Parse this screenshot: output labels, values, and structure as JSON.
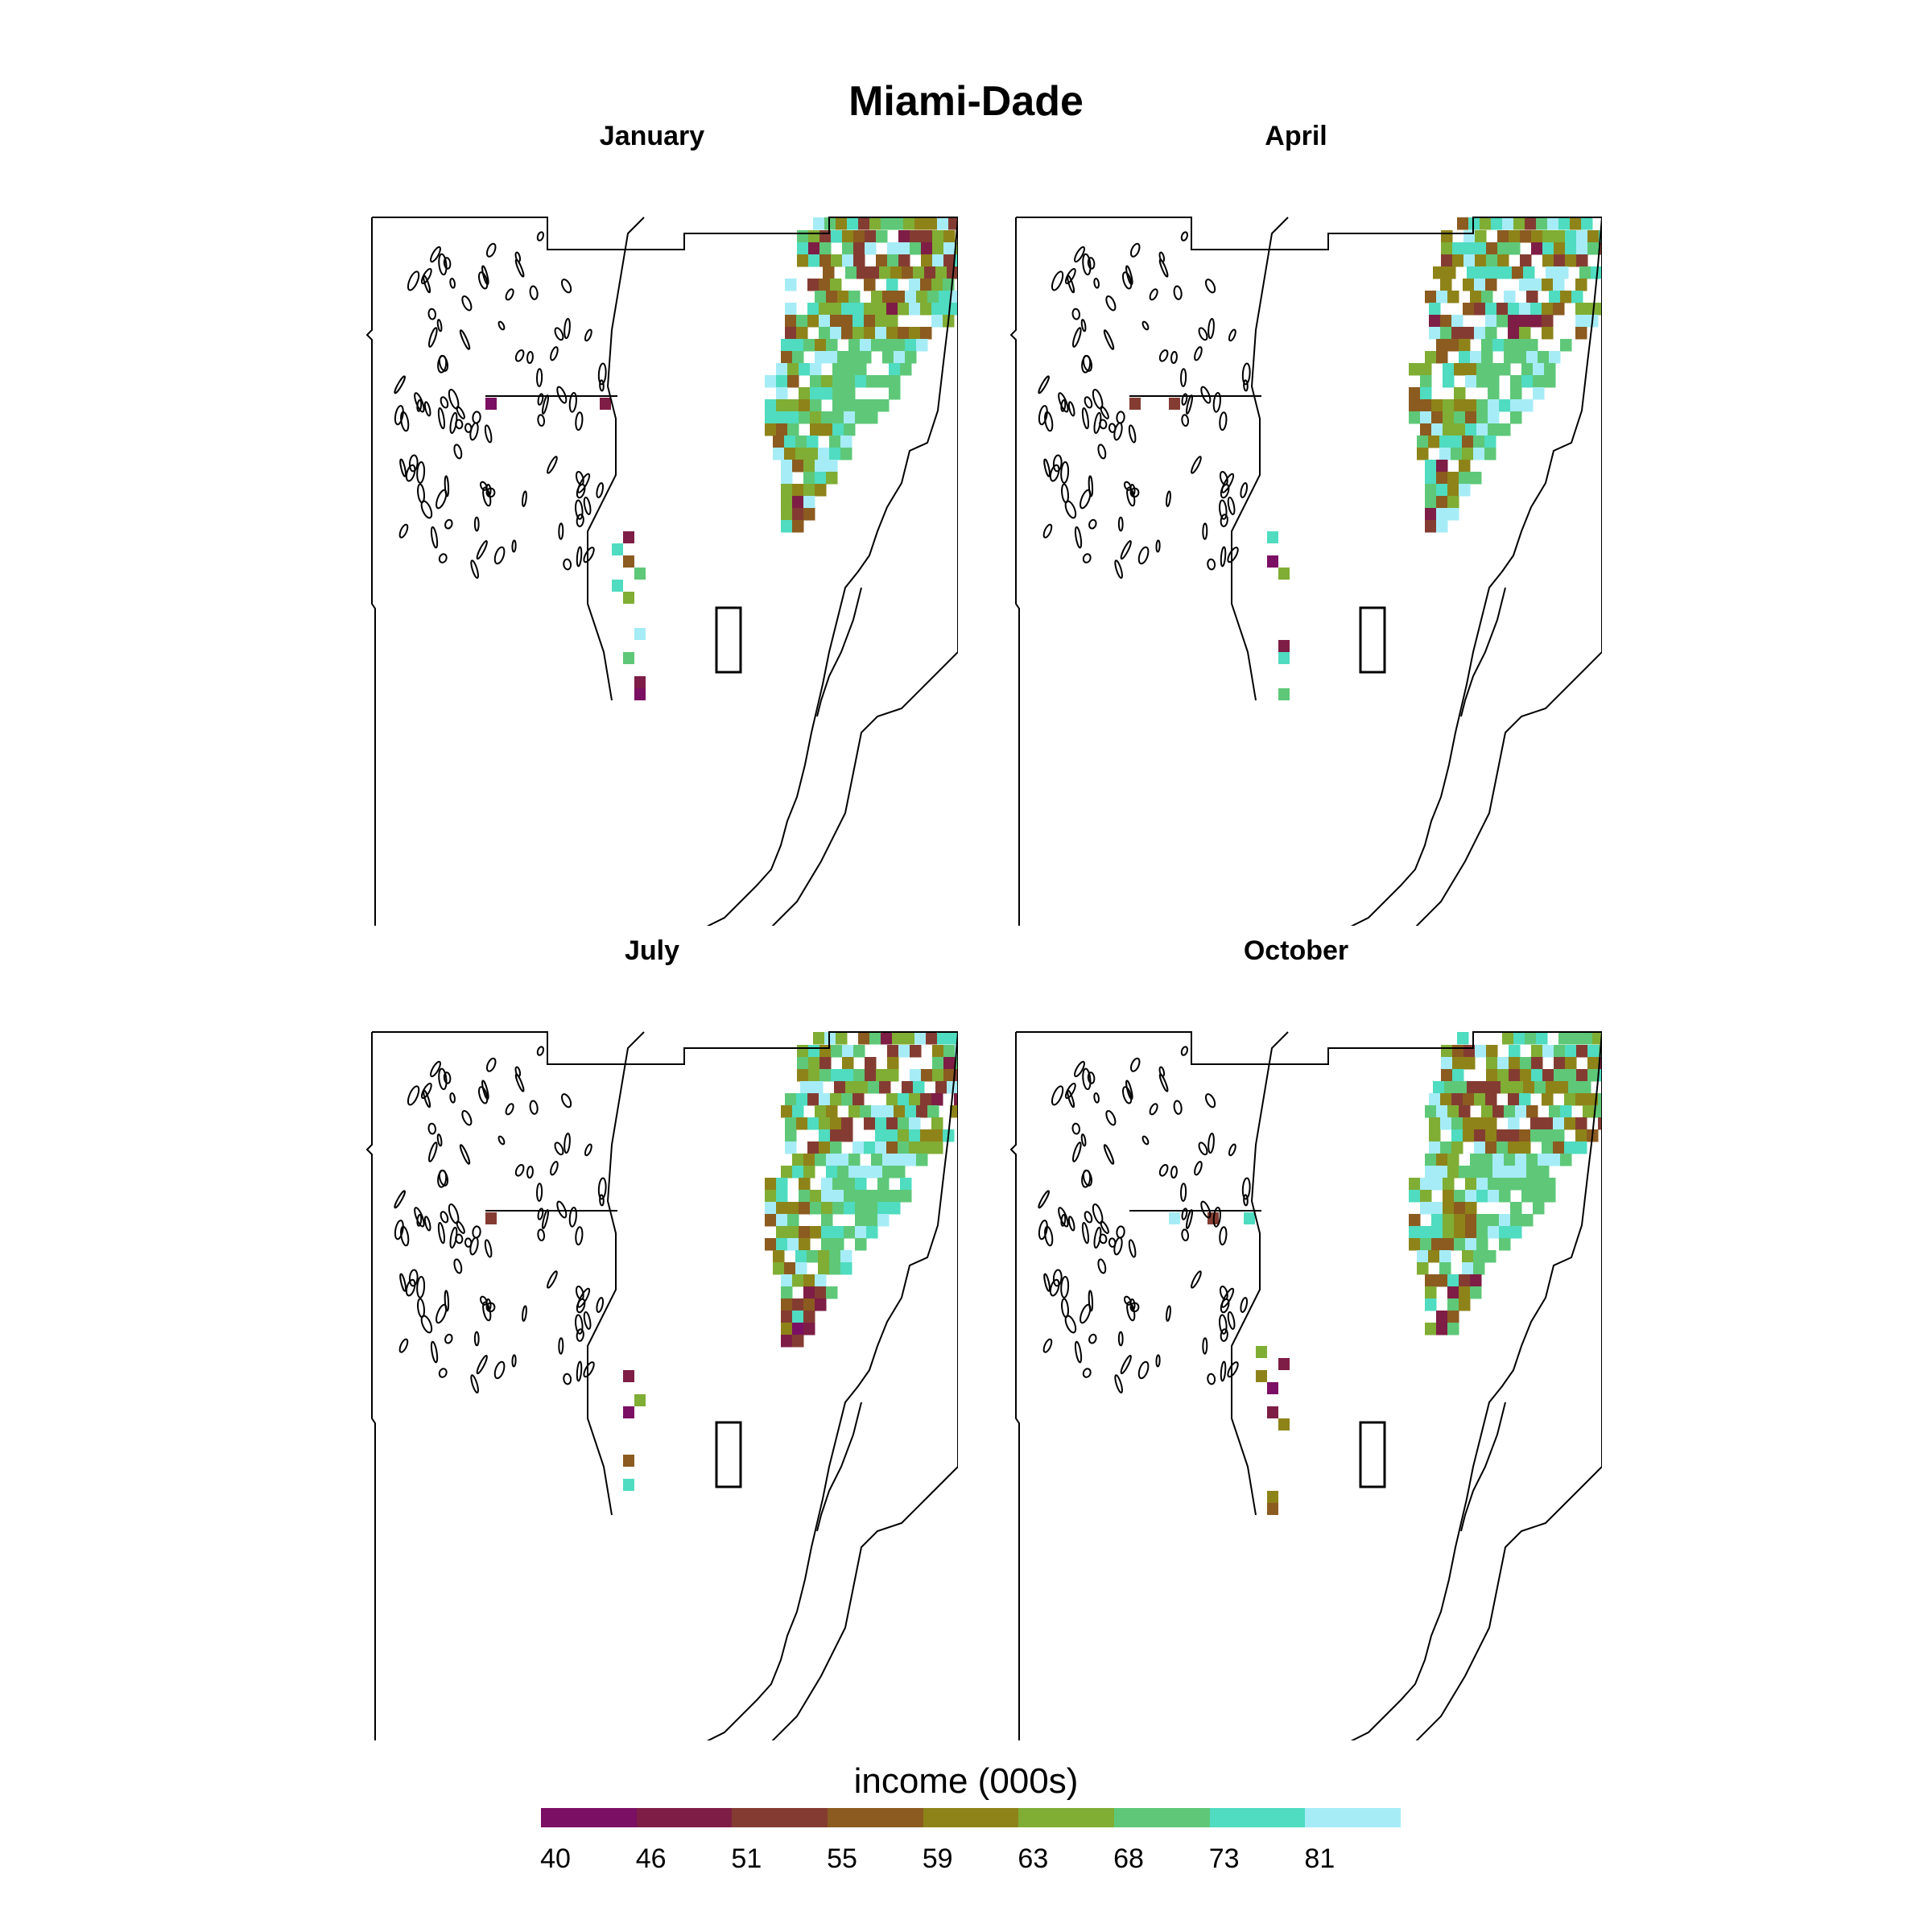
{
  "title": "Miami-Dade",
  "panels": [
    {
      "name": "January"
    },
    {
      "name": "April"
    },
    {
      "name": "July"
    },
    {
      "name": "October"
    }
  ],
  "legend": {
    "title": "income (000s)",
    "colors": [
      "#7b0f63",
      "#7e1d45",
      "#843c32",
      "#8b5b20",
      "#8e8319",
      "#80ad34",
      "#5ec878",
      "#4fdcc0",
      "#a6ecf7"
    ],
    "ticks": [
      "40",
      "46",
      "51",
      "55",
      "59",
      "63",
      "68",
      "73",
      "81"
    ]
  },
  "map_data": {
    "type": "gridded choropleth map",
    "region": "Miami-Dade",
    "variable": "income (000s)",
    "class_breaks": [
      40,
      46,
      51,
      55,
      59,
      63,
      68,
      73,
      81
    ]
  }
}
